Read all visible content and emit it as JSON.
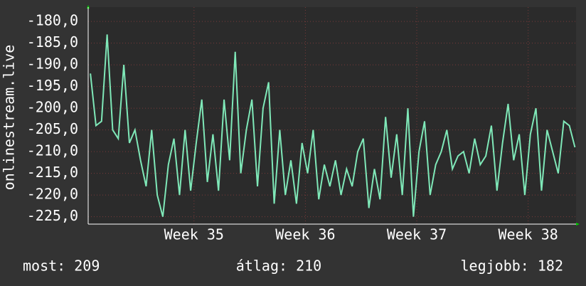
{
  "chart_data": {
    "type": "line",
    "y_label": "onlinestream.live",
    "x": [
      34.07,
      34.12,
      34.17,
      34.22,
      34.27,
      34.32,
      34.37,
      34.42,
      34.47,
      34.52,
      34.57,
      34.62,
      34.67,
      34.72,
      34.77,
      34.82,
      34.87,
      34.92,
      34.97,
      35.02,
      35.07,
      35.12,
      35.17,
      35.22,
      35.27,
      35.32,
      35.37,
      35.42,
      35.47,
      35.52,
      35.57,
      35.62,
      35.67,
      35.72,
      35.77,
      35.82,
      35.87,
      35.92,
      35.97,
      36.02,
      36.07,
      36.12,
      36.17,
      36.22,
      36.27,
      36.32,
      36.37,
      36.42,
      36.47,
      36.52,
      36.57,
      36.62,
      36.67,
      36.72,
      36.77,
      36.82,
      36.87,
      36.92,
      36.97,
      37.02,
      37.07,
      37.12,
      37.17,
      37.22,
      37.27,
      37.32,
      37.37,
      37.42,
      37.47,
      37.52,
      37.57,
      37.62,
      37.67,
      37.72,
      37.77,
      37.82,
      37.87,
      37.92,
      37.97,
      38.02,
      38.07,
      38.12,
      38.17,
      38.22,
      38.27,
      38.32,
      38.37,
      38.42
    ],
    "series": [
      {
        "name": "onlinestream.live",
        "color": "#7fe8b8",
        "values": [
          -192,
          -204,
          -203,
          -183,
          -205,
          -207,
          -190,
          -208,
          -205,
          -212,
          -218,
          -205,
          -220,
          -225,
          -213,
          -207,
          -220,
          -205,
          -219,
          -208,
          -198,
          -217,
          -206,
          -219,
          -198,
          -212,
          -187,
          -215,
          -205,
          -198,
          -218,
          -200,
          -194,
          -222,
          -205,
          -220,
          -212,
          -222,
          -208,
          -215,
          -205,
          -221,
          -213,
          -218,
          -212,
          -220,
          -214,
          -218,
          -210,
          -207,
          -223,
          -214,
          -221,
          -202,
          -216,
          -206,
          -220,
          -200,
          -225,
          -210,
          -203,
          -220,
          -213,
          -210,
          -205,
          -214,
          -211,
          -210,
          -215,
          -207,
          -213,
          -211,
          -204,
          -219,
          -208,
          -199,
          -212,
          -206,
          -220,
          -206,
          -200,
          -219,
          -205,
          -210,
          -215,
          -203,
          -204,
          -209
        ]
      }
    ],
    "xlim": [
      34.05,
      38.43
    ],
    "xticks": [
      {
        "value": 35,
        "label": "Week 35"
      },
      {
        "value": 36,
        "label": "Week 36"
      },
      {
        "value": 37,
        "label": "Week 37"
      },
      {
        "value": 38,
        "label": "Week 38"
      }
    ],
    "ylim": [
      -226.7,
      -176.7
    ],
    "yticks": [
      {
        "value": -180,
        "label": "-180,0"
      },
      {
        "value": -185,
        "label": "-185,0"
      },
      {
        "value": -190,
        "label": "-190,0"
      },
      {
        "value": -195,
        "label": "-195,0"
      },
      {
        "value": -200,
        "label": "-200,0"
      },
      {
        "value": -205,
        "label": "-205,0"
      },
      {
        "value": -210,
        "label": "-210,0"
      },
      {
        "value": -215,
        "label": "-215,0"
      },
      {
        "value": -220,
        "label": "-220,0"
      },
      {
        "value": -225,
        "label": "-225,0"
      }
    ],
    "grid": true
  },
  "footer": {
    "current": "most: 209",
    "average": "átlag: 210",
    "best": "legjobb: 182"
  }
}
